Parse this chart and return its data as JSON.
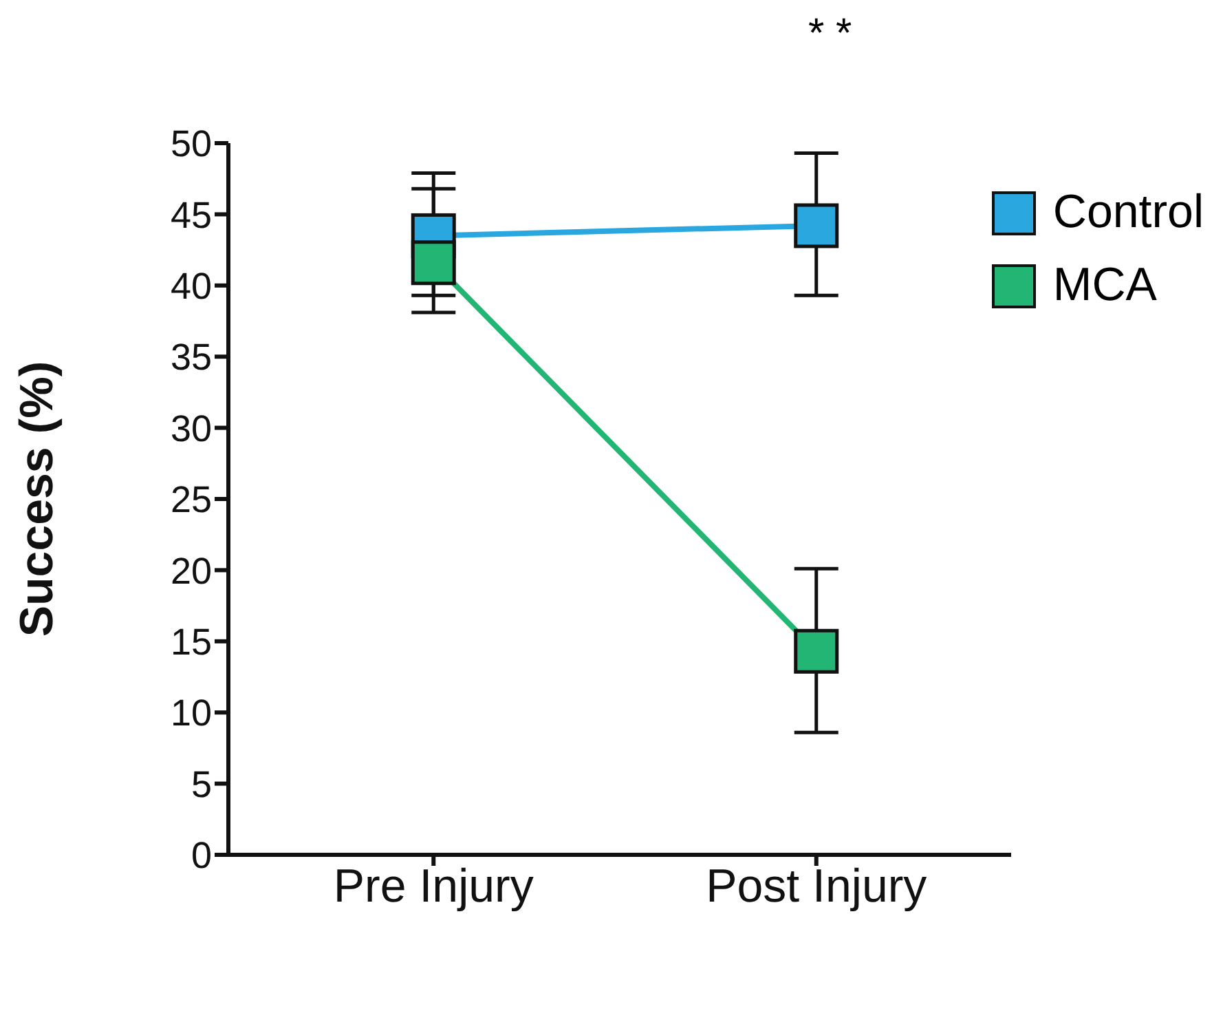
{
  "chart_data": {
    "type": "line",
    "categories": [
      "Pre Injury",
      "Post Injury"
    ],
    "ylabel": "Success (%)",
    "series": [
      {
        "name": "Control",
        "color": "#2aa7df",
        "values": [
          43.5,
          44.2
        ],
        "errors": [
          [
            39.3,
            47.9
          ],
          [
            39.3,
            49.3
          ]
        ]
      },
      {
        "name": "MCA",
        "color": "#22b573",
        "values": [
          41.6,
          14.3
        ],
        "errors": [
          [
            38.1,
            46.8
          ],
          [
            8.6,
            20.1
          ]
        ]
      }
    ],
    "ylim": [
      0,
      50
    ],
    "yticks": [
      0,
      5,
      10,
      15,
      20,
      25,
      30,
      35,
      40,
      45,
      50
    ],
    "annotations": [
      "* *"
    ],
    "grid": false,
    "legend": "top right",
    "marker": "square",
    "line_style": "solid"
  }
}
